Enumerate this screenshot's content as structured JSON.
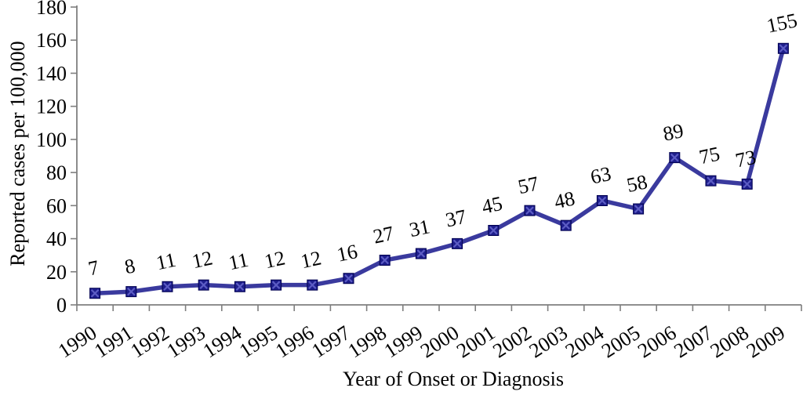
{
  "chart_data": {
    "type": "line",
    "title": "",
    "xlabel": "Year of Onset or Diagnosis",
    "ylabel": "Reported cases per 100,000",
    "categories": [
      "1990",
      "1991",
      "1992",
      "1993",
      "1994",
      "1995",
      "1996",
      "1997",
      "1998",
      "1999",
      "2000",
      "2001",
      "2002",
      "2003",
      "2004",
      "2005",
      "2006",
      "2007",
      "2008",
      "2009"
    ],
    "values": [
      7,
      8,
      11,
      12,
      11,
      12,
      12,
      16,
      27,
      31,
      37,
      45,
      57,
      48,
      63,
      58,
      89,
      75,
      73,
      155
    ],
    "data_labels_visible": true,
    "ylim": [
      0,
      180
    ],
    "yticks": [
      0,
      20,
      40,
      60,
      80,
      100,
      120,
      140,
      160,
      180
    ],
    "grid": "off",
    "legend": "none",
    "marker_shape": "square-with-x",
    "colors": {
      "line": "#3A3A9E",
      "marker_fill": "#1E1E8C",
      "marker_border": "#000050",
      "marker_cross": "#5C5CC4",
      "axis": "#7F7F7F",
      "text": "#000000",
      "background": "#FFFFFF"
    }
  }
}
